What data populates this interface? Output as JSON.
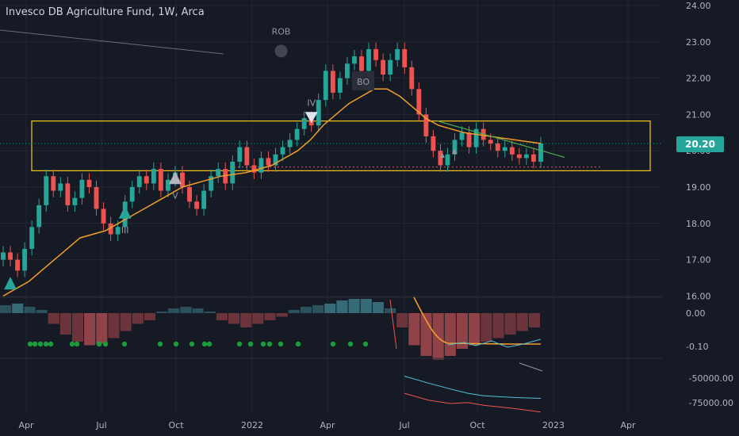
{
  "header": {
    "title": "Invesco DB Agriculture Fund, 1W, Arca"
  },
  "price_badge": {
    "value": "20.20",
    "color": "#26a69a"
  },
  "annotations": {
    "rob": "ROB",
    "iv": "IV",
    "v": "V",
    "iii": "III",
    "bo": "BO"
  },
  "colors": {
    "background": "#161a25",
    "up": "#26a69a",
    "down": "#ef5350",
    "ma": "#f29d2a",
    "box": "#f5c518",
    "trend": "#4caf50",
    "grid": "#232734"
  },
  "chart_data": [
    {
      "type": "candlestick",
      "title": "Invesco DB Agriculture Fund, 1W, Arca",
      "x_ticks": [
        "Apr",
        "Jul",
        "Oct",
        "2022",
        "Apr",
        "Jul",
        "Oct",
        "2023",
        "Apr"
      ],
      "y_ticks": [
        "24.00",
        "23.00",
        "22.00",
        "21.00",
        "20.00",
        "19.00",
        "18.00",
        "17.00",
        "16.00"
      ],
      "ylim": [
        16,
        24
      ],
      "last_price": 20.2,
      "close_series": [
        17.2,
        17.0,
        16.7,
        17.3,
        17.9,
        18.5,
        19.3,
        18.9,
        19.1,
        18.5,
        18.7,
        19.2,
        19.0,
        18.4,
        18.0,
        17.7,
        17.9,
        18.6,
        19.0,
        19.3,
        19.1,
        19.5,
        18.9,
        19.2,
        19.4,
        19.0,
        18.6,
        18.4,
        18.9,
        19.3,
        19.5,
        19.1,
        19.7,
        20.1,
        19.6,
        19.4,
        19.8,
        19.6,
        19.9,
        20.1,
        20.3,
        20.6,
        20.9,
        20.7,
        21.4,
        22.2,
        21.6,
        22.0,
        22.4,
        22.6,
        22.2,
        22.8,
        22.5,
        22.1,
        22.5,
        22.8,
        22.3,
        21.7,
        21.0,
        20.4,
        20.0,
        19.6,
        19.9,
        20.3,
        20.5,
        20.1,
        20.6,
        20.3,
        20.2,
        20.0,
        20.1,
        19.9,
        19.8,
        19.9,
        19.7,
        20.2
      ],
      "ma_series": [
        16.0,
        16.2,
        16.4,
        16.7,
        17.0,
        17.3,
        17.6,
        17.7,
        17.8,
        18.0,
        18.2,
        18.4,
        18.6,
        18.8,
        19.0,
        19.1,
        19.2,
        19.3,
        19.35,
        19.4,
        19.5,
        19.6,
        19.8,
        20.0,
        20.3,
        20.7,
        21.0,
        21.3,
        21.5,
        21.7,
        21.7,
        21.5,
        21.2,
        20.9,
        20.7,
        20.6,
        20.5,
        20.45,
        20.4,
        20.35,
        20.3,
        20.25,
        20.2
      ],
      "box_range": [
        19.45,
        20.82
      ],
      "support_level": 19.55,
      "markers": [
        {
          "label": "",
          "x_index": 1,
          "price": 16.4
        },
        {
          "label": "III",
          "x_index": 17,
          "price": 18.35
        },
        {
          "label": "V",
          "x_index": 24,
          "price": 19.3
        },
        {
          "label": "IV",
          "x_index": 43,
          "price": 20.85
        },
        {
          "label": "ROB",
          "x_index": 38,
          "price": 22.9
        }
      ]
    },
    {
      "type": "bar",
      "title": "",
      "y_ticks": [
        "0.00",
        "-0.10"
      ],
      "histogram": [
        0.5,
        0.6,
        0.4,
        0.2,
        -0.3,
        -0.6,
        -0.8,
        -0.9,
        -0.85,
        -0.7,
        -0.5,
        -0.3,
        -0.2,
        0.1,
        0.3,
        0.4,
        0.3,
        0.1,
        -0.2,
        -0.3,
        -0.4,
        -0.3,
        -0.2,
        -0.1,
        0.2,
        0.4,
        0.5,
        0.6,
        0.8,
        0.9,
        0.9,
        0.7,
        0.3,
        -0.4,
        -0.9,
        -1.2,
        -1.3,
        -1.2,
        -1.0,
        -0.9,
        -0.8,
        -0.7,
        -0.6,
        -0.5,
        -0.4
      ]
    },
    {
      "type": "line",
      "title": "",
      "y_ticks": [
        "-50000.00",
        "-75000.00"
      ],
      "series": [
        {
          "values": [
            -60000,
            -68000,
            -72000,
            -71000,
            -74000,
            -78000,
            -82000
          ]
        },
        {
          "values": [
            -40000,
            -48000,
            -55000,
            -60000,
            -63000,
            -65000,
            -66000
          ]
        }
      ]
    }
  ]
}
